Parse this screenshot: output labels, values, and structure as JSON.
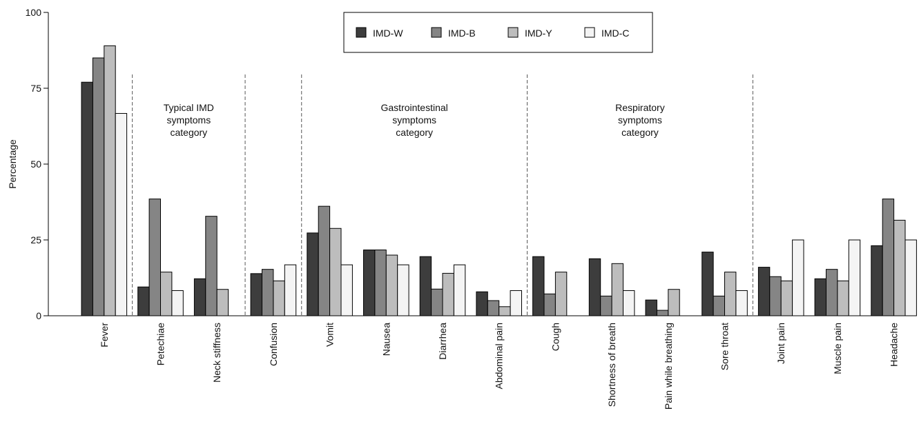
{
  "chart_data": {
    "type": "bar",
    "title": "",
    "xlabel": "",
    "ylabel": "Percentage",
    "ylim": [
      0,
      100
    ],
    "yticks": [
      "0",
      "25",
      "50",
      "75",
      "100"
    ],
    "grid": false,
    "legend_position": "top",
    "categories": [
      "Fever",
      "Petechiae",
      "Neck stiffness",
      "Confusion",
      "Vomit",
      "Nausea",
      "Diarrhea",
      "Abdominal pain",
      "Cough",
      "Shortness of breath",
      "Pain while breathing",
      "Sore throat",
      "Joint pain",
      "Muscle pain",
      "Headache"
    ],
    "series": [
      {
        "name": "IMD-W",
        "color": "#3d3d3d",
        "values": [
          77,
          9.5,
          12.2,
          13.9,
          27.3,
          21.7,
          19.5,
          7.9,
          19.5,
          18.8,
          5.2,
          21,
          16,
          12.2,
          23.1
        ]
      },
      {
        "name": "IMD-B",
        "color": "#858585",
        "values": [
          85,
          38.5,
          32.8,
          15.3,
          36.1,
          21.7,
          8.8,
          5,
          7.2,
          6.5,
          1.8,
          6.5,
          12.9,
          15.3,
          38.5
        ]
      },
      {
        "name": "IMD-Y",
        "color": "#bdbdbd",
        "values": [
          89,
          14.4,
          8.7,
          11.5,
          28.8,
          20,
          14,
          3,
          14.4,
          17.2,
          8.7,
          14.4,
          11.5,
          11.5,
          31.5
        ]
      },
      {
        "name": "IMD-C",
        "color": "#f4f4f4",
        "values": [
          66.7,
          8.3,
          0,
          16.8,
          16.8,
          16.8,
          16.8,
          8.3,
          0,
          8.3,
          0,
          8.3,
          25,
          25,
          25
        ]
      }
    ],
    "group_annotations": [
      {
        "text": [
          "Typical IMD",
          "symptoms",
          "category"
        ],
        "from": 1,
        "to": 2
      },
      {
        "text": [
          "Gastrointestinal",
          "symptoms",
          "category"
        ],
        "from": 4,
        "to": 7
      },
      {
        "text": [
          "Respiratory",
          "symptoms",
          "category"
        ],
        "from": 8,
        "to": 11
      }
    ],
    "dividers_after": [
      0,
      2,
      3,
      7,
      11
    ]
  }
}
